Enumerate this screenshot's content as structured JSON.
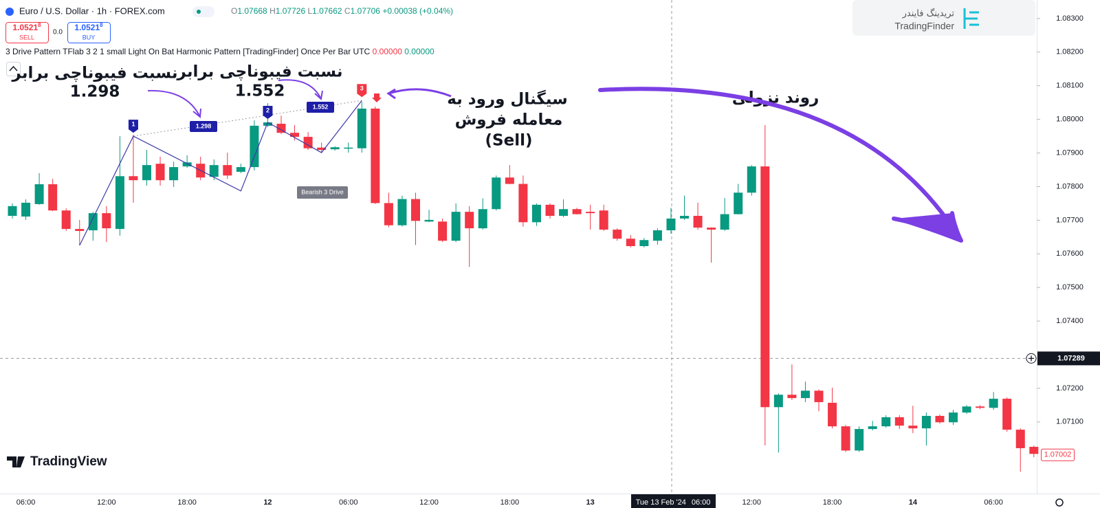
{
  "header": {
    "symbol": "Euro / U.S. Dollar · 1h · FOREX.com",
    "ohlc": [
      {
        "letter": "O",
        "value": "1.07668"
      },
      {
        "letter": "H",
        "value": "1.07726"
      },
      {
        "letter": "L",
        "value": "1.07662"
      },
      {
        "letter": "C",
        "value": "1.07706"
      }
    ],
    "change": "+0.00038 (+0.04%)"
  },
  "trade": {
    "sell_price": "1.0521",
    "sell_price_sup": "8",
    "sell": "SELL",
    "spread": "0.0",
    "buy_price": "1.0521",
    "buy_price_sup": "8",
    "buy": "BUY"
  },
  "indicator": {
    "name": "3 Drive Pattern TFlab 3 2 1 small Light On Bat Harmonic Pattern [TradingFinder] Once Per Bar UTC",
    "value_1": "0.00000",
    "value_2": "0.00000"
  },
  "logo": {
    "persian": "تریدینگ فایندر",
    "latin": "TradingFinder"
  },
  "watermark": "TradingView",
  "annotations": {
    "fib_1_text": "نسبت فیبوناچی برابر",
    "fib_1_value": 1.298,
    "fib_2_text": "نسبت فیبوناچی برابر",
    "fib_2_value": 1.552,
    "signal_1": "سیگنال ورود به",
    "signal_2": "معامله فروش",
    "signal_3": "(Sell)",
    "trend": "روند نزولی"
  },
  "chart_data": {
    "type": "candlestick",
    "categories": [
      null,
      "06:00",
      null,
      null,
      null,
      null,
      null,
      "12:00",
      null,
      null,
      null,
      null,
      null,
      "18:00",
      null,
      null,
      null,
      null,
      null,
      "12",
      null,
      null,
      null,
      null,
      null,
      "06:00",
      null,
      null,
      null,
      null,
      null,
      "12:00",
      null,
      null,
      null,
      null,
      null,
      "18:00",
      null,
      null,
      null,
      null,
      null,
      "13",
      null,
      null,
      null,
      null,
      null,
      null,
      null,
      null,
      null,
      null,
      null,
      "12:00",
      null,
      null,
      null,
      null,
      null,
      "18:00",
      null,
      null,
      null,
      null,
      null,
      "14",
      null,
      null,
      null,
      null,
      null,
      "06:00",
      null,
      null,
      null
    ],
    "open": [
      1.07713,
      1.07711,
      1.07748,
      1.07807,
      1.07729,
      1.07674,
      1.0767,
      1.07721,
      1.07674,
      1.07831,
      1.07819,
      1.07868,
      1.07819,
      1.0786,
      1.07868,
      1.07829,
      1.07864,
      1.07844,
      1.07858,
      1.07981,
      1.07987,
      1.0796,
      1.07948,
      1.07916,
      1.07911,
      1.07914,
      1.07914,
      1.08032,
      1.07751,
      1.07685,
      1.07763,
      1.07696,
      1.07696,
      1.07639,
      1.07725,
      1.07676,
      1.07733,
      1.07827,
      1.07808,
      1.07694,
      1.07746,
      1.07713,
      1.07733,
      1.07725,
      1.07729,
      1.07672,
      1.07645,
      1.07623,
      1.07639,
      1.0767,
      1.07705,
      1.07713,
      1.07678,
      1.07672,
      1.07718,
      1.07782,
      1.0786,
      1.07144,
      1.07181,
      1.07171,
      1.07193,
      1.07157,
      1.07087,
      1.07015,
      1.07079,
      1.07087,
      1.07114,
      1.07089,
      1.07081,
      1.07118,
      1.07099,
      1.07128,
      1.07146,
      1.07142,
      1.07169,
      1.07077,
      1.07026
    ],
    "high": [
      1.0775,
      1.07762,
      1.0784,
      1.07823,
      1.07735,
      1.07701,
      1.07725,
      1.07742,
      1.0795,
      1.07954,
      1.07909,
      1.07889,
      1.07874,
      1.07893,
      1.07889,
      1.07881,
      1.07901,
      1.07868,
      1.07997,
      1.08048,
      1.08011,
      1.07983,
      1.07962,
      1.07931,
      1.0792,
      1.07931,
      1.08052,
      1.08038,
      1.07782,
      1.07773,
      1.07782,
      1.07731,
      1.07705,
      1.0775,
      1.07742,
      1.07765,
      1.07833,
      1.07864,
      1.07833,
      1.0775,
      1.0775,
      1.07762,
      1.07737,
      1.07746,
      1.07746,
      1.07676,
      1.07656,
      1.07647,
      1.07676,
      1.07737,
      1.07773,
      1.07752,
      1.07679,
      1.07766,
      1.07808,
      1.07864,
      1.07983,
      1.07185,
      1.07271,
      1.0722,
      1.07197,
      1.07202,
      1.07091,
      1.07087,
      1.07103,
      1.0712,
      1.0712,
      1.07148,
      1.07128,
      1.07122,
      1.07136,
      1.0715,
      1.0715,
      1.07189,
      1.07173,
      1.07081,
      1.0703
    ],
    "low": [
      1.07705,
      1.07701,
      1.07746,
      1.07727,
      1.07668,
      1.07625,
      1.07639,
      1.07635,
      1.07654,
      1.07752,
      1.07803,
      1.07803,
      1.07799,
      1.07856,
      1.07819,
      1.07819,
      1.07823,
      1.0784,
      1.07848,
      1.07977,
      1.07956,
      1.07937,
      1.07909,
      1.07901,
      1.07907,
      1.07901,
      1.07901,
      1.07748,
      1.07679,
      1.07681,
      1.07626,
      1.07694,
      1.07635,
      1.07635,
      1.07561,
      1.07672,
      1.07729,
      1.07807,
      1.07681,
      1.07683,
      1.07705,
      1.07709,
      1.07717,
      1.07672,
      1.07668,
      1.07639,
      1.07619,
      1.07619,
      1.07627,
      1.0766,
      1.07701,
      1.07672,
      1.07574,
      1.07668,
      1.07717,
      1.07773,
      1.0703,
      1.07009,
      1.07165,
      1.07159,
      1.07132,
      1.07081,
      1.07011,
      1.07011,
      1.07075,
      1.07083,
      1.07079,
      1.07067,
      1.0703,
      1.07095,
      1.07091,
      1.07124,
      1.07138,
      1.07136,
      1.07071,
      1.06952,
      1.06995
    ],
    "close": [
      1.07742,
      1.07752,
      1.07807,
      1.07729,
      1.07674,
      1.07668,
      1.07721,
      1.07676,
      1.07831,
      1.07819,
      1.07864,
      1.07819,
      1.07858,
      1.07872,
      1.07827,
      1.07864,
      1.07833,
      1.07858,
      1.07981,
      1.07991,
      1.0796,
      1.07948,
      1.07914,
      1.07909,
      1.07917,
      1.07916,
      1.08032,
      1.07751,
      1.07685,
      1.07763,
      1.07698,
      1.07701,
      1.07639,
      1.07725,
      1.07676,
      1.07733,
      1.07827,
      1.07808,
      1.07694,
      1.07746,
      1.07713,
      1.07733,
      1.07718,
      1.07721,
      1.07672,
      1.07645,
      1.07623,
      1.07641,
      1.0767,
      1.07705,
      1.07713,
      1.07678,
      1.07672,
      1.07718,
      1.07782,
      1.0786,
      1.07144,
      1.07181,
      1.07171,
      1.07193,
      1.07159,
      1.07087,
      1.07015,
      1.07079,
      1.07087,
      1.07114,
      1.07089,
      1.07081,
      1.07118,
      1.07099,
      1.07128,
      1.07146,
      1.07142,
      1.07169,
      1.07077,
      1.07022,
      1.07005
    ],
    "up_color": "#089981",
    "down_color": "#f23645",
    "ylim": [
      1.06887,
      1.08355
    ],
    "yticks": [
      {
        "value": 1.083,
        "label": "1.08300"
      },
      {
        "value": 1.082,
        "label": "1.08200"
      },
      {
        "value": 1.081,
        "label": "1.08100"
      },
      {
        "value": 1.08,
        "label": "1.08000"
      },
      {
        "value": 1.079,
        "label": "1.07900"
      },
      {
        "value": 1.078,
        "label": "1.07800"
      },
      {
        "value": 1.077,
        "label": "1.07700"
      },
      {
        "value": 1.076,
        "label": "1.07600"
      },
      {
        "value": 1.075,
        "label": "1.07500"
      },
      {
        "value": 1.074,
        "label": "1.07400"
      },
      {
        "value": 1.072,
        "label": "1.07200"
      },
      {
        "value": 1.071,
        "label": "1.07100"
      }
    ],
    "last_price": 1.07002,
    "crosshair": {
      "price": 1.07289,
      "date": "Tue 13 Feb '24",
      "time": "06:00"
    },
    "pattern": {
      "name": "Bearish 3 Drive",
      "color": "#3d3aa8",
      "x": [
        5,
        9,
        17,
        19,
        23,
        26
      ],
      "values": [
        1.07625,
        1.0795,
        1.07787,
        1.07991,
        1.07901,
        1.08056
      ],
      "markers": [
        "1",
        "2",
        "3"
      ],
      "ratios": [
        1.298,
        1.552
      ]
    }
  }
}
